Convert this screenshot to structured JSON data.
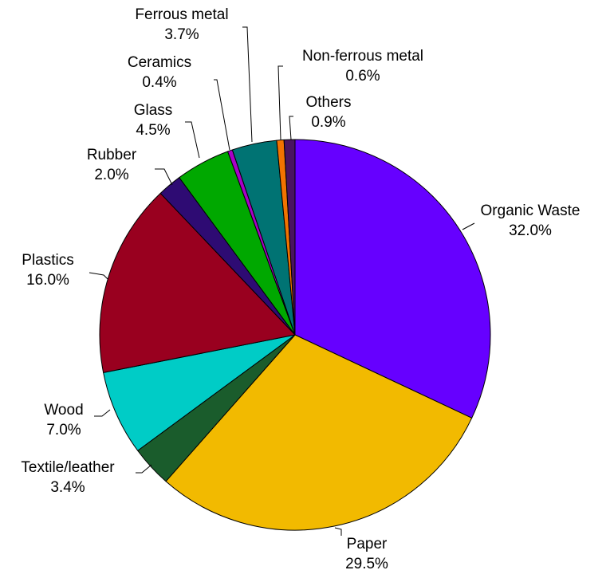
{
  "chart_data": {
    "type": "pie",
    "title": "",
    "unit": "%",
    "slices": [
      {
        "label": "Organic Waste",
        "value": 32.0,
        "value_label": "32.0%",
        "color": "#6600FF"
      },
      {
        "label": "Paper",
        "value": 29.5,
        "value_label": "29.5%",
        "color": "#F2BA00"
      },
      {
        "label": "Textile/leather",
        "value": 3.4,
        "value_label": "3.4%",
        "color": "#1A5C2C"
      },
      {
        "label": "Wood",
        "value": 7.0,
        "value_label": "7.0%",
        "color": "#00CCC6"
      },
      {
        "label": "Plastics",
        "value": 16.0,
        "value_label": "16.0%",
        "color": "#99001F"
      },
      {
        "label": "Rubber",
        "value": 2.0,
        "value_label": "2.0%",
        "color": "#2E0B73"
      },
      {
        "label": "Glass",
        "value": 4.5,
        "value_label": "4.5%",
        "color": "#00A800"
      },
      {
        "label": "Ceramics",
        "value": 0.4,
        "value_label": "0.4%",
        "color": "#A800C8"
      },
      {
        "label": "Ferrous metal",
        "value": 3.7,
        "value_label": "3.7%",
        "color": "#007373"
      },
      {
        "label": "Non-ferrous metal",
        "value": 0.6,
        "value_label": "0.6%",
        "color": "#F27300"
      },
      {
        "label": "Others",
        "value": 0.9,
        "value_label": "0.9%",
        "color": "#4A1460"
      }
    ],
    "start_angle": "12 o'clock",
    "direction": "clockwise",
    "legend": "none",
    "labels": "outside with leader lines"
  }
}
